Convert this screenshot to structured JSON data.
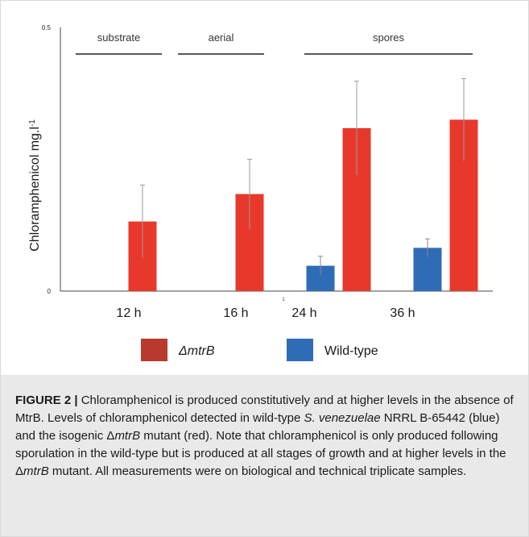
{
  "chart_data": {
    "type": "bar",
    "title": "",
    "xlabel": "",
    "ylabel": "Chloramphenicol mg.l",
    "ylabel_superscript": "-1",
    "ylim": [
      0,
      0.5
    ],
    "yticks": [
      "0",
      "0.5"
    ],
    "categories": [
      "12 h",
      "16 h",
      "24 h",
      "36 h"
    ],
    "series": [
      {
        "name": "Wild-type",
        "color": "#2e6cb5",
        "values": [
          null,
          null,
          0.048,
          0.082
        ],
        "errors": [
          null,
          null,
          0.018,
          0.017
        ]
      },
      {
        "name": "ΔmtrB",
        "color": "#e8382c",
        "values": [
          0.132,
          0.184,
          0.309,
          0.325
        ],
        "errors": [
          0.069,
          0.066,
          0.089,
          0.078
        ]
      }
    ],
    "stage_labels": [
      {
        "label": "substrate",
        "from": "12 h",
        "to": "12 h"
      },
      {
        "label": "aerial",
        "from": "16 h",
        "to": "16 h"
      },
      {
        "label": "spores",
        "from": "24 h",
        "to": "36 h"
      }
    ],
    "stray_marks": [
      "1"
    ],
    "legend": [
      {
        "label": "ΔmtrB",
        "color": "#b83a2c"
      },
      {
        "label": "Wild-type",
        "color": "#2e6cb5"
      }
    ],
    "legend_position": "bottom"
  },
  "caption": {
    "label": "FIGURE 2 |",
    "part1": " Chloramphenicol is produced constitutively and at higher levels in the absence of MtrB. Levels of chloramphenicol detected in wild-type ",
    "species": "S. venezuelae",
    "part2": " NRRL B-65442 (blue) and the isogenic Δ",
    "gene1": "mtrB",
    "part3": " mutant (red). Note that chloramphenicol is only produced following sporulation in the wild-type but is produced at all stages of growth and at higher levels in the Δ",
    "gene2": "mtrB",
    "part4": " mutant. All measurements were on biological and technical triplicate samples."
  }
}
